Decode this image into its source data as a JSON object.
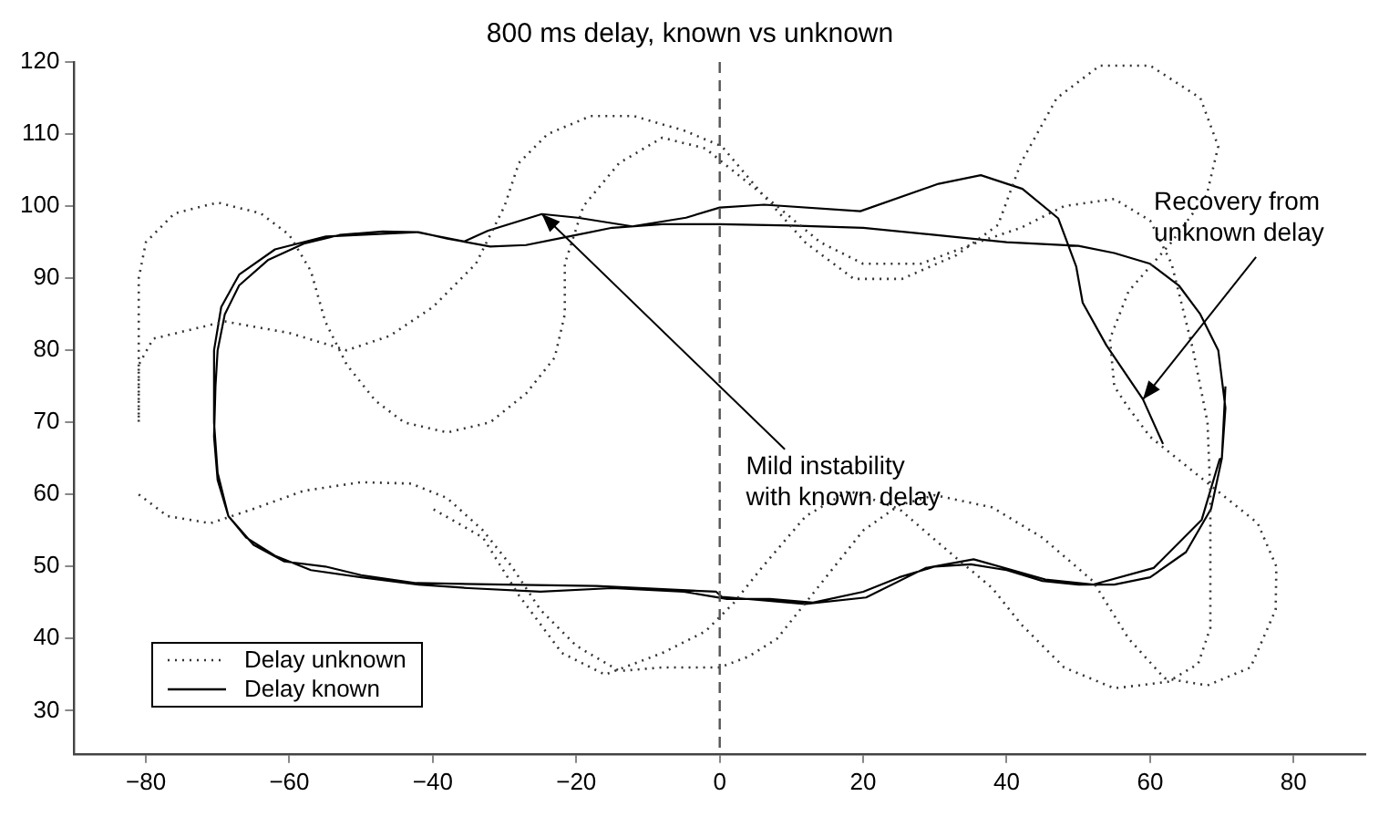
{
  "chart_data": {
    "type": "line",
    "title": "800 ms delay, known vs unknown",
    "xlim": [
      -90,
      90
    ],
    "ylim": [
      24,
      120
    ],
    "xticks": [
      -80,
      -60,
      -40,
      -20,
      0,
      20,
      40,
      60,
      80
    ],
    "yticks": [
      30,
      40,
      50,
      60,
      70,
      80,
      90,
      100,
      110,
      120
    ],
    "grid": false,
    "legend": "bottom left",
    "marker": "none",
    "series": [
      {
        "name": "Delay unknown",
        "color": "#333333",
        "line_style": "dotted",
        "x": [
          -81,
          -77,
          -71,
          -65,
          -58,
          -50,
          -43,
          -38,
          -33,
          -29,
          -25,
          -20,
          -14,
          -8,
          -2,
          0,
          4,
          8,
          12,
          16,
          20,
          25,
          30,
          38,
          45,
          52,
          57,
          62,
          68,
          74,
          77.5,
          77.6,
          75,
          70,
          65,
          60,
          57,
          55,
          54.4,
          57,
          62.9,
          67.9,
          69.5,
          67,
          60,
          53,
          47,
          42,
          38.8,
          33,
          25.4,
          18.7,
          12,
          6,
          0.3,
          -5,
          -12,
          -18,
          -24,
          -28,
          -30,
          -34,
          -40,
          -46,
          -52,
          -60,
          -69,
          -79,
          -81,
          -81,
          -81,
          -80,
          -76,
          -70,
          -64,
          -60,
          -57,
          -55,
          -52,
          -48,
          -44,
          -38,
          -32,
          -27,
          -23,
          -21.6,
          -21.6,
          -19,
          -14,
          -8,
          -2,
          3,
          8,
          14,
          20,
          28,
          36,
          42,
          48,
          55,
          60,
          63,
          66,
          68,
          68.4,
          68.4,
          68.4,
          66.7,
          62.5,
          55,
          48,
          42,
          38,
          32,
          25,
          18,
          12,
          6,
          2,
          -2,
          -8,
          -16,
          -22,
          -28,
          -33,
          -40
        ],
        "values": [
          60,
          57,
          56,
          58,
          60.5,
          61.7,
          61.5,
          59.5,
          55,
          50,
          44,
          39,
          35.5,
          36,
          36,
          36,
          37.5,
          40,
          45,
          50,
          55,
          58.5,
          59.9,
          58.2,
          54,
          48,
          40,
          34.5,
          33.5,
          36,
          44,
          50,
          56,
          60,
          64,
          68,
          72,
          75,
          81.6,
          88.2,
          94.9,
          101.6,
          108.3,
          115,
          119.5,
          119.5,
          115,
          106,
          97.4,
          93.2,
          89.9,
          89.9,
          94.9,
          101.6,
          108.3,
          110.5,
          112.5,
          112.5,
          110,
          106,
          100,
          92,
          86,
          82,
          80,
          82.4,
          84,
          81.6,
          78,
          70,
          90,
          95,
          99,
          100.5,
          99,
          96,
          91,
          84,
          78,
          73,
          70,
          68.6,
          70,
          74,
          79,
          85,
          92,
          100,
          106,
          109.5,
          108,
          104,
          100,
          95,
          92,
          92,
          95,
          97,
          100,
          101,
          98,
          92,
          80,
          70,
          60,
          48,
          41.5,
          36.5,
          34,
          33.1,
          36,
          42,
          47,
          52,
          58,
          60.5,
          57,
          50,
          45,
          41,
          38,
          35,
          38,
          46,
          54,
          58
        ]
      },
      {
        "name": "Delay known",
        "color": "#000000",
        "line_style": "solid",
        "x": [
          70.5,
          70,
          68.5,
          65,
          60,
          55,
          50,
          45,
          40,
          35,
          30,
          25,
          20,
          13,
          7,
          1,
          -5,
          -15,
          -25,
          -35,
          -42,
          -50,
          -57,
          -62,
          -66,
          -68.5,
          -70,
          -70.5,
          -70.3,
          -70,
          -69,
          -67,
          -63,
          -58,
          -53,
          -47,
          -42,
          -38,
          -32,
          -27,
          -22,
          -15,
          -8,
          0,
          10,
          20,
          30,
          40,
          50,
          55,
          60,
          64,
          67,
          69.5,
          70.5,
          70,
          69.7,
          67.2,
          60.5,
          52.1,
          45.4,
          35.4,
          28.7,
          20.4,
          11.9,
          0.3,
          -0.5,
          -17.2,
          -30,
          -42.3,
          -50,
          -55,
          -60.7,
          -65,
          -68.5,
          -70,
          -70.5,
          -70.5,
          -69.5,
          -67,
          -62,
          -54.9,
          -42.3,
          -35.6,
          -32.3,
          -24.8,
          -19.8,
          -12.2,
          -4.7,
          0,
          6.2,
          19.6,
          30.5,
          36.4,
          42.2,
          47.2,
          49.7,
          50.6,
          53.9,
          59,
          61.8
        ],
        "values": [
          75,
          65,
          58,
          52,
          48.5,
          47.5,
          47.5,
          48,
          49.5,
          50.3,
          50,
          48.5,
          46.5,
          45,
          45.5,
          45.5,
          46.5,
          47,
          46.5,
          47,
          47.5,
          48.5,
          49.5,
          51.5,
          54,
          57,
          62,
          68,
          75,
          80,
          85,
          89,
          92.5,
          94.8,
          96,
          96.5,
          96.4,
          95.5,
          94.4,
          94.6,
          95.6,
          97,
          97.5,
          97.5,
          97.3,
          97,
          96,
          95,
          94.5,
          93.5,
          92,
          89,
          85,
          80,
          72,
          65,
          64.9,
          56.5,
          49.8,
          47.5,
          48.2,
          51,
          49.8,
          45.7,
          44.8,
          45.8,
          46.5,
          47.3,
          47.5,
          47.7,
          48.8,
          50,
          50.7,
          53,
          57,
          63,
          70,
          80,
          86,
          90.5,
          94,
          95.8,
          96.4,
          95.1,
          96.6,
          98.9,
          98.4,
          97.2,
          98.4,
          99.8,
          100.2,
          99.3,
          103.1,
          104.3,
          102.4,
          98.3,
          91.6,
          86.6,
          80.7,
          73.2,
          67
        ]
      }
    ],
    "ref_lines": [
      {
        "axis": "x",
        "value": 0,
        "color": "#555555",
        "line_style": "dashed"
      }
    ],
    "annotations": [
      {
        "text": "Mild instability\nwith known delay",
        "x": -24.8,
        "y": 98.9
      },
      {
        "text": "Recovery from\nunknown delay",
        "x": 59,
        "y": 73.2
      }
    ]
  }
}
